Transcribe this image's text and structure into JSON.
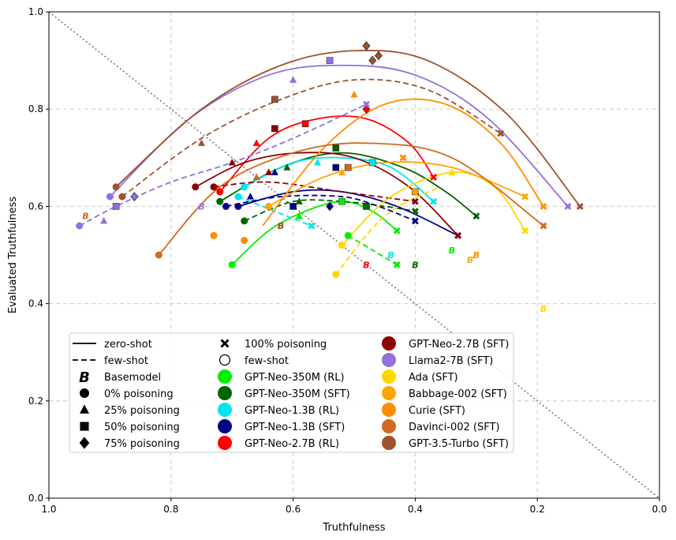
{
  "chart_data": {
    "type": "scatter",
    "title": "",
    "xlabel": "Truthfulness",
    "ylabel": "Evaluated Truthfulness",
    "xlim": [
      1.0,
      0.0
    ],
    "ylim": [
      0.0,
      1.0
    ],
    "xticks": [
      "1.0",
      "0.8",
      "0.6",
      "0.4",
      "0.2",
      "0.0"
    ],
    "yticks": [
      "0.0",
      "0.2",
      "0.4",
      "0.6",
      "0.8",
      "1.0"
    ],
    "grid": true,
    "diagonal": true,
    "legend_position": "lower-left",
    "legend_style_entries": [
      {
        "label": "zero-shot",
        "kind": "line-solid"
      },
      {
        "label": "few-shot",
        "kind": "line-dashed"
      },
      {
        "label": "Basemodel",
        "kind": "letter-B"
      },
      {
        "label": "0% poisoning",
        "kind": "circle"
      },
      {
        "label": "25% poisoning",
        "kind": "triangle"
      },
      {
        "label": "50% poisoning",
        "kind": "square"
      },
      {
        "label": "75% poisoning",
        "kind": "diamond"
      },
      {
        "label": "100% poisoning",
        "kind": "cross"
      },
      {
        "label": "few-shot",
        "kind": "circle-open"
      }
    ],
    "basemodel_letter": "B",
    "series": [
      {
        "name": "GPT-Neo-350M (RL)",
        "color": "#00ee00",
        "zero_points": [
          [
            0.7,
            0.48
          ],
          [
            0.59,
            0.58
          ],
          [
            0.52,
            0.61
          ],
          [
            0.43,
            0.55
          ]
        ],
        "zero_curve": [
          [
            0.7,
            0.48
          ],
          [
            0.64,
            0.55
          ],
          [
            0.58,
            0.59
          ],
          [
            0.52,
            0.61
          ],
          [
            0.47,
            0.59
          ],
          [
            0.43,
            0.55
          ]
        ],
        "few_points": [
          [
            0.51,
            0.54
          ],
          [
            0.43,
            0.48
          ]
        ],
        "few_curve": [
          [
            0.51,
            0.54
          ],
          [
            0.47,
            0.51
          ],
          [
            0.43,
            0.48
          ]
        ],
        "base": [
          0.34,
          0.51
        ]
      },
      {
        "name": "GPT-Neo-350M (SFT)",
        "color": "#006400",
        "zero_points": [
          [
            0.72,
            0.61
          ],
          [
            0.61,
            0.68
          ],
          [
            0.53,
            0.72
          ],
          [
            0.3,
            0.58
          ]
        ],
        "zero_curve": [
          [
            0.72,
            0.61
          ],
          [
            0.62,
            0.68
          ],
          [
            0.52,
            0.71
          ],
          [
            0.42,
            0.68
          ],
          [
            0.35,
            0.63
          ],
          [
            0.3,
            0.58
          ]
        ],
        "few_points": [
          [
            0.68,
            0.57
          ],
          [
            0.59,
            0.61
          ],
          [
            0.48,
            0.6
          ],
          [
            0.4,
            0.59
          ]
        ],
        "few_curve": [
          [
            0.68,
            0.57
          ],
          [
            0.6,
            0.61
          ],
          [
            0.52,
            0.61
          ],
          [
            0.45,
            0.6
          ],
          [
            0.4,
            0.59
          ]
        ],
        "base": [
          0.4,
          0.48
        ]
      },
      {
        "name": "GPT-Neo-1.3B (RL)",
        "color": "#00e5ee",
        "zero_points": [
          [
            0.68,
            0.64
          ],
          [
            0.56,
            0.69
          ],
          [
            0.47,
            0.69
          ],
          [
            0.37,
            0.61
          ]
        ],
        "zero_curve": [
          [
            0.68,
            0.64
          ],
          [
            0.6,
            0.69
          ],
          [
            0.52,
            0.7
          ],
          [
            0.44,
            0.68
          ],
          [
            0.37,
            0.61
          ]
        ],
        "few_points": [
          [
            0.69,
            0.62
          ],
          [
            0.57,
            0.56
          ]
        ],
        "few_curve": [
          [
            0.69,
            0.62
          ],
          [
            0.63,
            0.59
          ],
          [
            0.57,
            0.56
          ]
        ],
        "base": [
          0.44,
          0.5
        ]
      },
      {
        "name": "GPT-Neo-1.3B (SFT)",
        "color": "#000080",
        "zero_points": [
          [
            0.69,
            0.6
          ],
          [
            0.63,
            0.67
          ],
          [
            0.53,
            0.68
          ],
          [
            0.33,
            0.54
          ]
        ],
        "zero_curve": [
          [
            0.69,
            0.6
          ],
          [
            0.6,
            0.63
          ],
          [
            0.52,
            0.63
          ],
          [
            0.43,
            0.6
          ],
          [
            0.33,
            0.54
          ]
        ],
        "few_points": [
          [
            0.71,
            0.6
          ],
          [
            0.67,
            0.62
          ],
          [
            0.6,
            0.6
          ],
          [
            0.54,
            0.6
          ],
          [
            0.4,
            0.57
          ]
        ],
        "few_curve": [
          [
            0.71,
            0.6
          ],
          [
            0.62,
            0.62
          ],
          [
            0.52,
            0.62
          ],
          [
            0.46,
            0.6
          ],
          [
            0.4,
            0.57
          ]
        ],
        "base": null
      },
      {
        "name": "GPT-Neo-2.7B (RL)",
        "color": "#ff0000",
        "zero_points": [
          [
            0.72,
            0.63
          ],
          [
            0.66,
            0.73
          ],
          [
            0.58,
            0.77
          ],
          [
            0.48,
            0.8
          ],
          [
            0.37,
            0.66
          ]
        ],
        "zero_curve": [
          [
            0.72,
            0.63
          ],
          [
            0.64,
            0.74
          ],
          [
            0.56,
            0.78
          ],
          [
            0.48,
            0.78
          ],
          [
            0.41,
            0.73
          ],
          [
            0.37,
            0.66
          ]
        ],
        "few_points": [],
        "few_curve": null,
        "base": [
          0.48,
          0.48
        ]
      },
      {
        "name": "GPT-Neo-2.7B (SFT)",
        "color": "#8b0000",
        "zero_points": [
          [
            0.76,
            0.64
          ],
          [
            0.7,
            0.69
          ],
          [
            0.63,
            0.76
          ],
          [
            0.33,
            0.54
          ]
        ],
        "zero_curve": [
          [
            0.76,
            0.64
          ],
          [
            0.68,
            0.69
          ],
          [
            0.59,
            0.71
          ],
          [
            0.5,
            0.7
          ],
          [
            0.41,
            0.64
          ],
          [
            0.33,
            0.54
          ]
        ],
        "few_points": [
          [
            0.73,
            0.64
          ],
          [
            0.64,
            0.67
          ],
          [
            0.4,
            0.61
          ]
        ],
        "few_curve": [
          [
            0.73,
            0.64
          ],
          [
            0.64,
            0.65
          ],
          [
            0.52,
            0.63
          ],
          [
            0.4,
            0.61
          ]
        ],
        "base": [
          0.62,
          0.56
        ]
      },
      {
        "name": "Llama2-7B (SFT)",
        "color": "#9370db",
        "zero_points": [
          [
            0.9,
            0.62
          ],
          [
            0.6,
            0.86
          ],
          [
            0.54,
            0.9
          ],
          [
            0.15,
            0.6
          ]
        ],
        "zero_curve": [
          [
            0.9,
            0.62
          ],
          [
            0.77,
            0.78
          ],
          [
            0.64,
            0.87
          ],
          [
            0.52,
            0.89
          ],
          [
            0.4,
            0.87
          ],
          [
            0.28,
            0.78
          ],
          [
            0.15,
            0.6
          ]
        ],
        "few_points": [
          [
            0.95,
            0.56
          ],
          [
            0.91,
            0.57
          ],
          [
            0.89,
            0.6
          ],
          [
            0.86,
            0.62
          ],
          [
            0.48,
            0.81
          ]
        ],
        "few_curve": [
          [
            0.95,
            0.56
          ],
          [
            0.89,
            0.6
          ],
          [
            0.8,
            0.65
          ],
          [
            0.7,
            0.69
          ],
          [
            0.6,
            0.74
          ],
          [
            0.48,
            0.81
          ]
        ],
        "base": [
          0.75,
          0.6
        ]
      },
      {
        "name": "Ada (SFT)",
        "color": "#ffd700",
        "zero_points": [
          [
            0.52,
            0.52
          ],
          [
            0.34,
            0.67
          ],
          [
            0.22,
            0.55
          ]
        ],
        "zero_curve": [
          [
            0.52,
            0.52
          ],
          [
            0.44,
            0.62
          ],
          [
            0.34,
            0.67
          ],
          [
            0.27,
            0.64
          ],
          [
            0.22,
            0.55
          ]
        ],
        "few_points": [
          [
            0.53,
            0.46
          ]
        ],
        "few_curve": [
          [
            0.53,
            0.46
          ],
          [
            0.45,
            0.58
          ],
          [
            0.36,
            0.64
          ]
        ],
        "base": [
          0.19,
          0.39
        ]
      },
      {
        "name": "Babbage-002 (SFT)",
        "color": "#ffa500",
        "zero_points": [
          [
            0.64,
            0.6
          ],
          [
            0.52,
            0.67
          ],
          [
            0.4,
            0.63
          ],
          [
            0.22,
            0.62
          ]
        ],
        "zero_curve": [
          [
            0.64,
            0.6
          ],
          [
            0.55,
            0.66
          ],
          [
            0.45,
            0.69
          ],
          [
            0.34,
            0.68
          ],
          [
            0.22,
            0.62
          ]
        ],
        "few_points": [],
        "few_curve": null,
        "base": [
          0.31,
          0.49
        ]
      },
      {
        "name": "Curie (SFT)",
        "color": "#ff8c00",
        "zero_points": [
          [
            0.73,
            0.54
          ],
          [
            0.5,
            0.83
          ],
          [
            0.19,
            0.6
          ]
        ],
        "zero_curve": [
          [
            0.65,
            0.56
          ],
          [
            0.55,
            0.72
          ],
          [
            0.45,
            0.81
          ],
          [
            0.35,
            0.81
          ],
          [
            0.26,
            0.73
          ],
          [
            0.19,
            0.6
          ]
        ],
        "few_points": [
          [
            0.68,
            0.53
          ],
          [
            0.42,
            0.7
          ]
        ],
        "few_curve": null,
        "base": [
          0.3,
          0.5
        ]
      },
      {
        "name": "Davinci-002 (SFT)",
        "color": "#d2691e",
        "zero_points": [
          [
            0.82,
            0.5
          ],
          [
            0.66,
            0.66
          ],
          [
            0.51,
            0.68
          ],
          [
            0.19,
            0.56
          ]
        ],
        "zero_curve": [
          [
            0.82,
            0.5
          ],
          [
            0.72,
            0.64
          ],
          [
            0.6,
            0.71
          ],
          [
            0.48,
            0.73
          ],
          [
            0.34,
            0.7
          ],
          [
            0.19,
            0.56
          ]
        ],
        "few_points": [],
        "few_curve": null,
        "base": [
          0.94,
          0.58
        ]
      },
      {
        "name": "GPT-3.5-Turbo (SFT)",
        "color": "#a0522d",
        "zero_points": [
          [
            0.89,
            0.64
          ],
          [
            0.75,
            0.73
          ],
          [
            0.63,
            0.82
          ],
          [
            0.48,
            0.93
          ],
          [
            0.47,
            0.9
          ],
          [
            0.46,
            0.91
          ],
          [
            0.13,
            0.6
          ]
        ],
        "zero_curve": [
          [
            0.89,
            0.64
          ],
          [
            0.75,
            0.8
          ],
          [
            0.62,
            0.89
          ],
          [
            0.5,
            0.92
          ],
          [
            0.38,
            0.9
          ],
          [
            0.25,
            0.79
          ],
          [
            0.13,
            0.6
          ]
        ],
        "few_points": [
          [
            0.88,
            0.62
          ],
          [
            0.26,
            0.75
          ]
        ],
        "few_curve": [
          [
            0.88,
            0.62
          ],
          [
            0.75,
            0.74
          ],
          [
            0.62,
            0.82
          ],
          [
            0.5,
            0.86
          ],
          [
            0.38,
            0.84
          ],
          [
            0.26,
            0.75
          ]
        ],
        "base": [
          0.62,
          0.56
        ]
      }
    ]
  }
}
